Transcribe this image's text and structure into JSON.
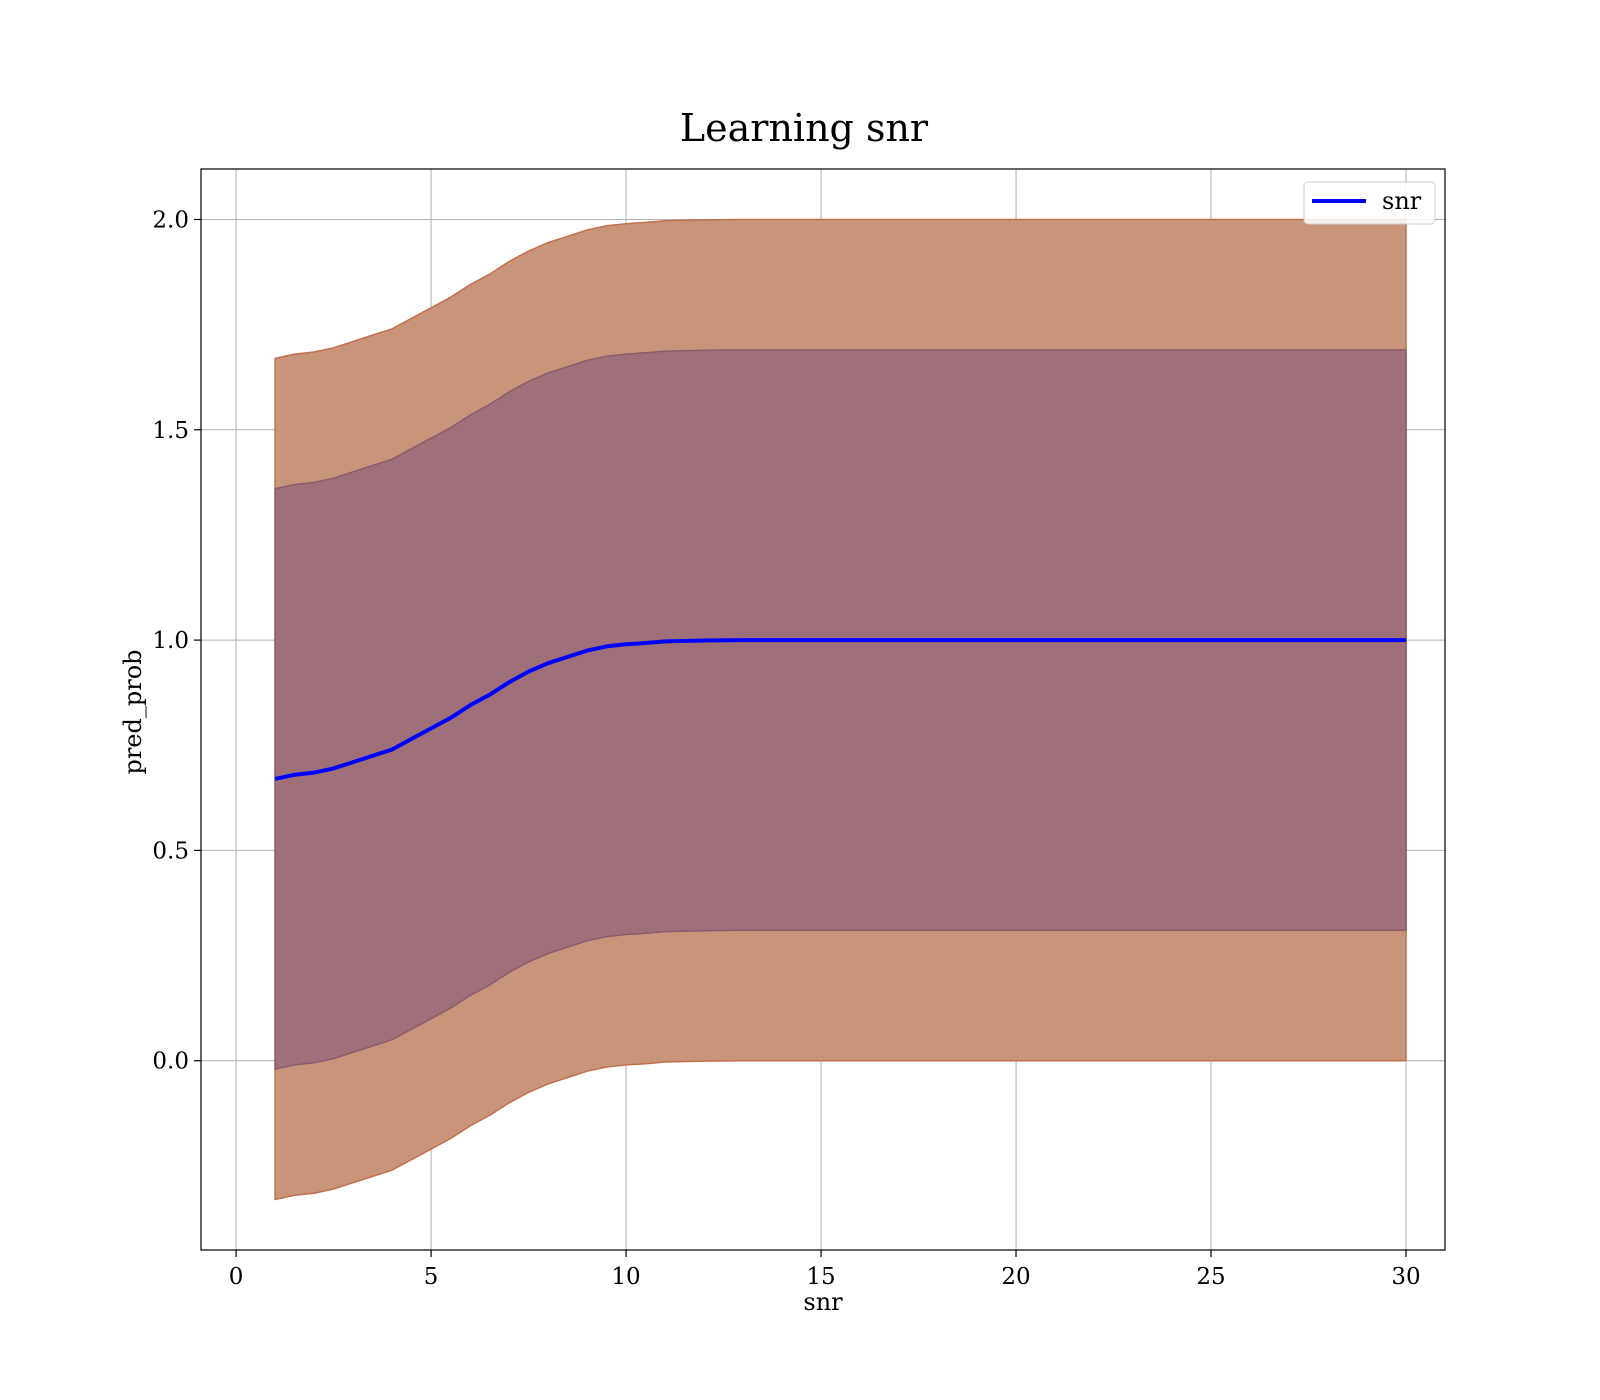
{
  "chart_data": {
    "type": "area",
    "title": "Learning snr",
    "xlabel": "snr",
    "ylabel": "pred_prob",
    "xlim": [
      -0.9,
      31
    ],
    "ylim": [
      -0.45,
      2.12
    ],
    "xticks": [
      0,
      5,
      10,
      15,
      20,
      25,
      30
    ],
    "xtick_labels": [
      "0",
      "5",
      "10",
      "15",
      "20",
      "25",
      "30"
    ],
    "yticks": [
      0.0,
      0.5,
      1.0,
      1.5,
      2.0
    ],
    "ytick_labels": [
      "0.0",
      "0.5",
      "1.0",
      "1.5",
      "2.0"
    ],
    "grid": true,
    "legend": {
      "position": "top-right",
      "entries": [
        {
          "label": "snr",
          "color": "#0000ff"
        }
      ]
    },
    "series": [
      {
        "name": "snr",
        "kind": "line",
        "color": "#0000ff",
        "x": [
          1,
          1.5,
          2,
          2.5,
          3,
          3.5,
          4,
          4.5,
          5,
          5.5,
          6,
          6.5,
          7,
          7.5,
          8,
          8.5,
          9,
          9.5,
          10,
          10.5,
          11,
          12,
          13,
          14,
          15,
          20,
          25,
          30
        ],
        "y": [
          0.67,
          0.68,
          0.685,
          0.695,
          0.71,
          0.725,
          0.74,
          0.765,
          0.79,
          0.815,
          0.845,
          0.87,
          0.9,
          0.925,
          0.945,
          0.96,
          0.975,
          0.985,
          0.99,
          0.993,
          0.997,
          0.999,
          1.0,
          1.0,
          1.0,
          1.0,
          1.0,
          1.0
        ]
      }
    ],
    "bands": [
      {
        "kind": "band",
        "offset": 1.0,
        "fill": "#c8957a",
        "edge": "#c0704f",
        "opacity": 1.0
      },
      {
        "kind": "band",
        "offset": 0.69,
        "fill": "#a0707a",
        "edge": "#8a5a6e",
        "opacity": 1.0
      }
    ]
  }
}
